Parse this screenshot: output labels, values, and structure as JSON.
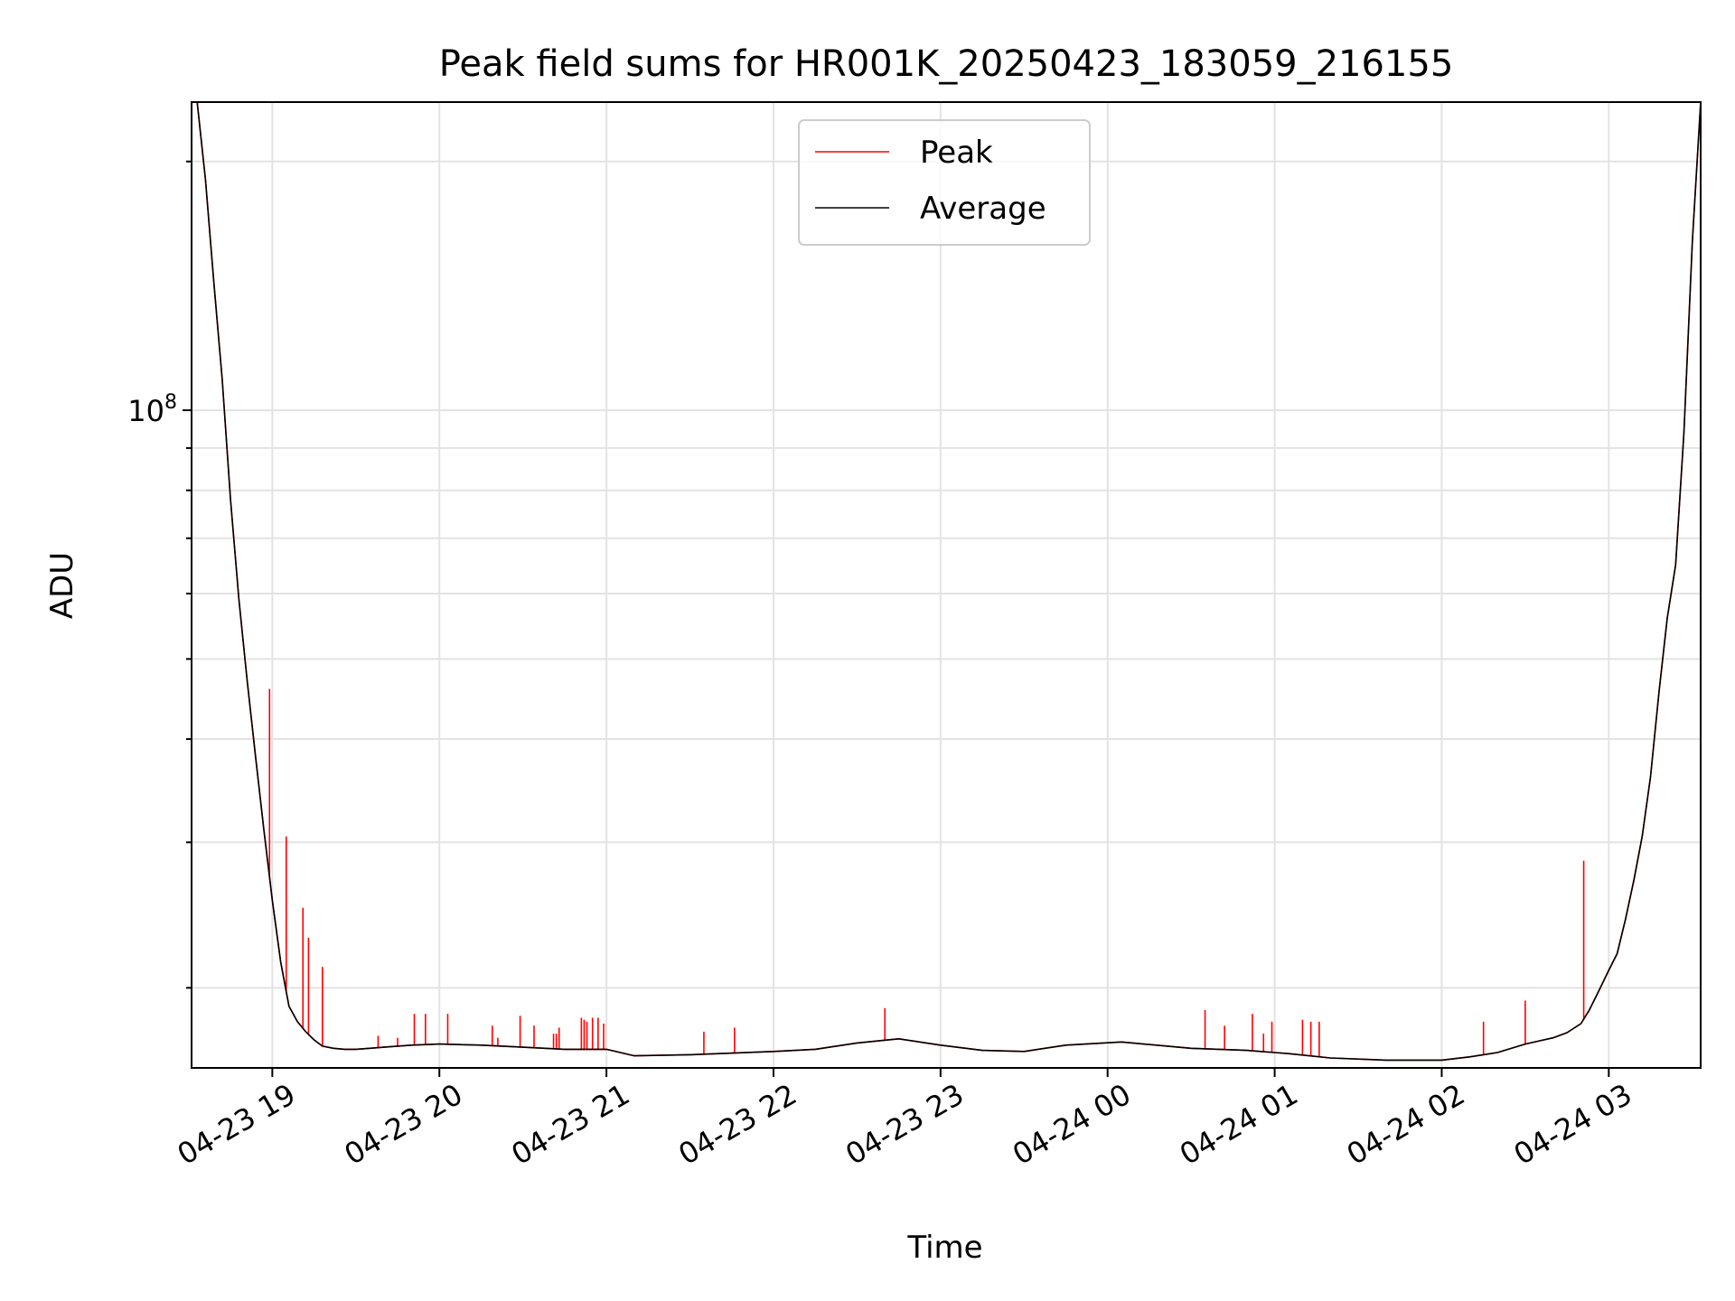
{
  "chart_data": {
    "type": "line",
    "title": "Peak field sums for HR001K_20250423_183059_216155",
    "xlabel": "Time",
    "ylabel": "ADU",
    "y_scale": "log",
    "grid": true,
    "legend_position": "upper center",
    "x_ticks": [
      "04-23 19",
      "04-23 20",
      "04-23 21",
      "04-23 22",
      "04-23 23",
      "04-24 00",
      "04-24 01",
      "04-24 02",
      "04-24 03"
    ],
    "x_tick_values": [
      "2025-04-23 19:00",
      "2025-04-23 20:00",
      "2025-04-23 21:00",
      "2025-04-23 22:00",
      "2025-04-23 23:00",
      "2025-04-24 00:00",
      "2025-04-24 01:00",
      "2025-04-24 02:00",
      "2025-04-24 03:00"
    ],
    "xlim": [
      "2025-04-23 18:31",
      "2025-04-24 03:33"
    ],
    "y_major_tick_label": "10^8",
    "y_major_tick_value": 100000000,
    "ylim": [
      16000000,
      236000000
    ],
    "series": [
      {
        "name": "Peak",
        "color": "#ff0000",
        "x": [
          "2025-04-23 18:31",
          "2025-04-23 18:33",
          "2025-04-23 18:36",
          "2025-04-23 18:39",
          "2025-04-23 18:42",
          "2025-04-23 18:45",
          "2025-04-23 18:48",
          "2025-04-23 18:51",
          "2025-04-23 18:54",
          "2025-04-23 18:57",
          "2025-04-23 19:00",
          "2025-04-23 19:03",
          "2025-04-23 19:06",
          "2025-04-23 19:09",
          "2025-04-23 19:12",
          "2025-04-23 19:15",
          "2025-04-23 19:18",
          "2025-04-23 19:22",
          "2025-04-23 19:26",
          "2025-04-23 19:30",
          "2025-04-23 19:35",
          "2025-04-23 19:40",
          "2025-04-23 19:50",
          "2025-04-23 20:00",
          "2025-04-23 20:15",
          "2025-04-23 20:30",
          "2025-04-23 20:45",
          "2025-04-23 21:00",
          "2025-04-23 21:10",
          "2025-04-23 21:30",
          "2025-04-23 22:00",
          "2025-04-23 22:15",
          "2025-04-23 22:30",
          "2025-04-23 22:45",
          "2025-04-23 23:00",
          "2025-04-23 23:15",
          "2025-04-23 23:30",
          "2025-04-23 23:45",
          "2025-04-24 00:05",
          "2025-04-24 00:30",
          "2025-04-24 00:50",
          "2025-04-24 01:00",
          "2025-04-24 01:05",
          "2025-04-24 01:20",
          "2025-04-24 01:40",
          "2025-04-24 02:00",
          "2025-04-24 02:10",
          "2025-04-24 02:20",
          "2025-04-24 02:30",
          "2025-04-24 02:35",
          "2025-04-24 02:40",
          "2025-04-24 02:45",
          "2025-04-24 02:50",
          "2025-04-24 02:53",
          "2025-04-24 02:56",
          "2025-04-24 03:00",
          "2025-04-24 03:03",
          "2025-04-24 03:06",
          "2025-04-24 03:09",
          "2025-04-24 03:12",
          "2025-04-24 03:15",
          "2025-04-24 03:18",
          "2025-04-24 03:21",
          "2025-04-24 03:24",
          "2025-04-24 03:27",
          "2025-04-24 03:30",
          "2025-04-24 03:33"
        ],
        "values": [
          236000000,
          236000000,
          190000000,
          143000000,
          109000000,
          78000000,
          59000000,
          47000000,
          38000000,
          31000000,
          25500000,
          21500000,
          19000000,
          18200000,
          17700000,
          17300000,
          17000000,
          16900000,
          16850000,
          16850000,
          16900000,
          16950000,
          17050000,
          17100000,
          17050000,
          16950000,
          16850000,
          16850000,
          16550000,
          16600000,
          16750000,
          16850000,
          17150000,
          17350000,
          17050000,
          16800000,
          16750000,
          17050000,
          17200000,
          16900000,
          16800000,
          16700000,
          16650000,
          16450000,
          16350000,
          16350000,
          16500000,
          16700000,
          17100000,
          17250000,
          17400000,
          17650000,
          18100000,
          18800000,
          19700000,
          21000000,
          22000000,
          24200000,
          27000000,
          30500000,
          36000000,
          45500000,
          56000000,
          65000000,
          94000000,
          160000000,
          236000000
        ],
        "spikes": [
          {
            "x": "2025-04-23 18:59",
            "y": 46000000
          },
          {
            "x": "2025-04-23 19:05",
            "y": 30500000
          },
          {
            "x": "2025-04-23 19:11",
            "y": 25000000
          },
          {
            "x": "2025-04-23 19:13",
            "y": 23000000
          },
          {
            "x": "2025-04-23 19:18",
            "y": 21200000
          },
          {
            "x": "2025-04-23 19:38",
            "y": 17500000
          },
          {
            "x": "2025-04-23 19:45",
            "y": 17400000
          },
          {
            "x": "2025-04-23 19:51",
            "y": 18600000
          },
          {
            "x": "2025-04-23 19:55",
            "y": 18600000
          },
          {
            "x": "2025-04-23 20:03",
            "y": 18600000
          },
          {
            "x": "2025-04-23 20:19",
            "y": 18000000
          },
          {
            "x": "2025-04-23 20:21",
            "y": 17400000
          },
          {
            "x": "2025-04-23 20:29",
            "y": 18500000
          },
          {
            "x": "2025-04-23 20:34",
            "y": 18000000
          },
          {
            "x": "2025-04-23 20:41",
            "y": 17600000
          },
          {
            "x": "2025-04-23 20:42",
            "y": 17600000
          },
          {
            "x": "2025-04-23 20:43",
            "y": 17900000
          },
          {
            "x": "2025-04-23 20:51",
            "y": 18400000
          },
          {
            "x": "2025-04-23 20:52",
            "y": 18300000
          },
          {
            "x": "2025-04-23 20:53",
            "y": 18200000
          },
          {
            "x": "2025-04-23 20:55",
            "y": 18400000
          },
          {
            "x": "2025-04-23 20:57",
            "y": 18400000
          },
          {
            "x": "2025-04-23 20:59",
            "y": 18100000
          },
          {
            "x": "2025-04-23 21:35",
            "y": 17700000
          },
          {
            "x": "2025-04-23 21:46",
            "y": 17900000
          },
          {
            "x": "2025-04-23 22:40",
            "y": 18900000
          },
          {
            "x": "2025-04-24 00:35",
            "y": 18800000
          },
          {
            "x": "2025-04-24 00:42",
            "y": 18000000
          },
          {
            "x": "2025-04-24 00:52",
            "y": 18600000
          },
          {
            "x": "2025-04-24 00:56",
            "y": 17600000
          },
          {
            "x": "2025-04-24 00:59",
            "y": 18200000
          },
          {
            "x": "2025-04-24 01:10",
            "y": 18300000
          },
          {
            "x": "2025-04-24 01:13",
            "y": 18200000
          },
          {
            "x": "2025-04-24 01:16",
            "y": 18200000
          },
          {
            "x": "2025-04-24 02:15",
            "y": 18200000
          },
          {
            "x": "2025-04-24 02:30",
            "y": 19300000
          },
          {
            "x": "2025-04-24 02:51",
            "y": 28500000
          }
        ]
      },
      {
        "name": "Average",
        "color": "#000000",
        "x": [
          "2025-04-23 18:31",
          "2025-04-23 18:33",
          "2025-04-23 18:36",
          "2025-04-23 18:39",
          "2025-04-23 18:42",
          "2025-04-23 18:45",
          "2025-04-23 18:48",
          "2025-04-23 18:51",
          "2025-04-23 18:54",
          "2025-04-23 18:57",
          "2025-04-23 19:00",
          "2025-04-23 19:03",
          "2025-04-23 19:06",
          "2025-04-23 19:09",
          "2025-04-23 19:12",
          "2025-04-23 19:15",
          "2025-04-23 19:18",
          "2025-04-23 19:22",
          "2025-04-23 19:26",
          "2025-04-23 19:30",
          "2025-04-23 19:35",
          "2025-04-23 19:40",
          "2025-04-23 19:50",
          "2025-04-23 20:00",
          "2025-04-23 20:15",
          "2025-04-23 20:30",
          "2025-04-23 20:45",
          "2025-04-23 21:00",
          "2025-04-23 21:10",
          "2025-04-23 21:30",
          "2025-04-23 22:00",
          "2025-04-23 22:15",
          "2025-04-23 22:30",
          "2025-04-23 22:45",
          "2025-04-23 23:00",
          "2025-04-23 23:15",
          "2025-04-23 23:30",
          "2025-04-23 23:45",
          "2025-04-24 00:05",
          "2025-04-24 00:30",
          "2025-04-24 00:50",
          "2025-04-24 01:00",
          "2025-04-24 01:05",
          "2025-04-24 01:20",
          "2025-04-24 01:40",
          "2025-04-24 02:00",
          "2025-04-24 02:10",
          "2025-04-24 02:20",
          "2025-04-24 02:30",
          "2025-04-24 02:35",
          "2025-04-24 02:40",
          "2025-04-24 02:45",
          "2025-04-24 02:50",
          "2025-04-24 02:53",
          "2025-04-24 02:56",
          "2025-04-24 03:00",
          "2025-04-24 03:03",
          "2025-04-24 03:06",
          "2025-04-24 03:09",
          "2025-04-24 03:12",
          "2025-04-24 03:15",
          "2025-04-24 03:18",
          "2025-04-24 03:21",
          "2025-04-24 03:24",
          "2025-04-24 03:27",
          "2025-04-24 03:30",
          "2025-04-24 03:33"
        ],
        "values": [
          236000000,
          236000000,
          190000000,
          143000000,
          109000000,
          78000000,
          59000000,
          47000000,
          38000000,
          31000000,
          25500000,
          21500000,
          19000000,
          18200000,
          17700000,
          17300000,
          17000000,
          16900000,
          16850000,
          16850000,
          16900000,
          16950000,
          17050000,
          17100000,
          17050000,
          16950000,
          16850000,
          16850000,
          16550000,
          16600000,
          16750000,
          16850000,
          17150000,
          17350000,
          17050000,
          16800000,
          16750000,
          17050000,
          17200000,
          16900000,
          16800000,
          16700000,
          16650000,
          16450000,
          16350000,
          16350000,
          16500000,
          16700000,
          17100000,
          17250000,
          17400000,
          17650000,
          18100000,
          18800000,
          19700000,
          21000000,
          22000000,
          24200000,
          27000000,
          30500000,
          36000000,
          45500000,
          56000000,
          65000000,
          94000000,
          160000000,
          236000000
        ]
      }
    ]
  }
}
